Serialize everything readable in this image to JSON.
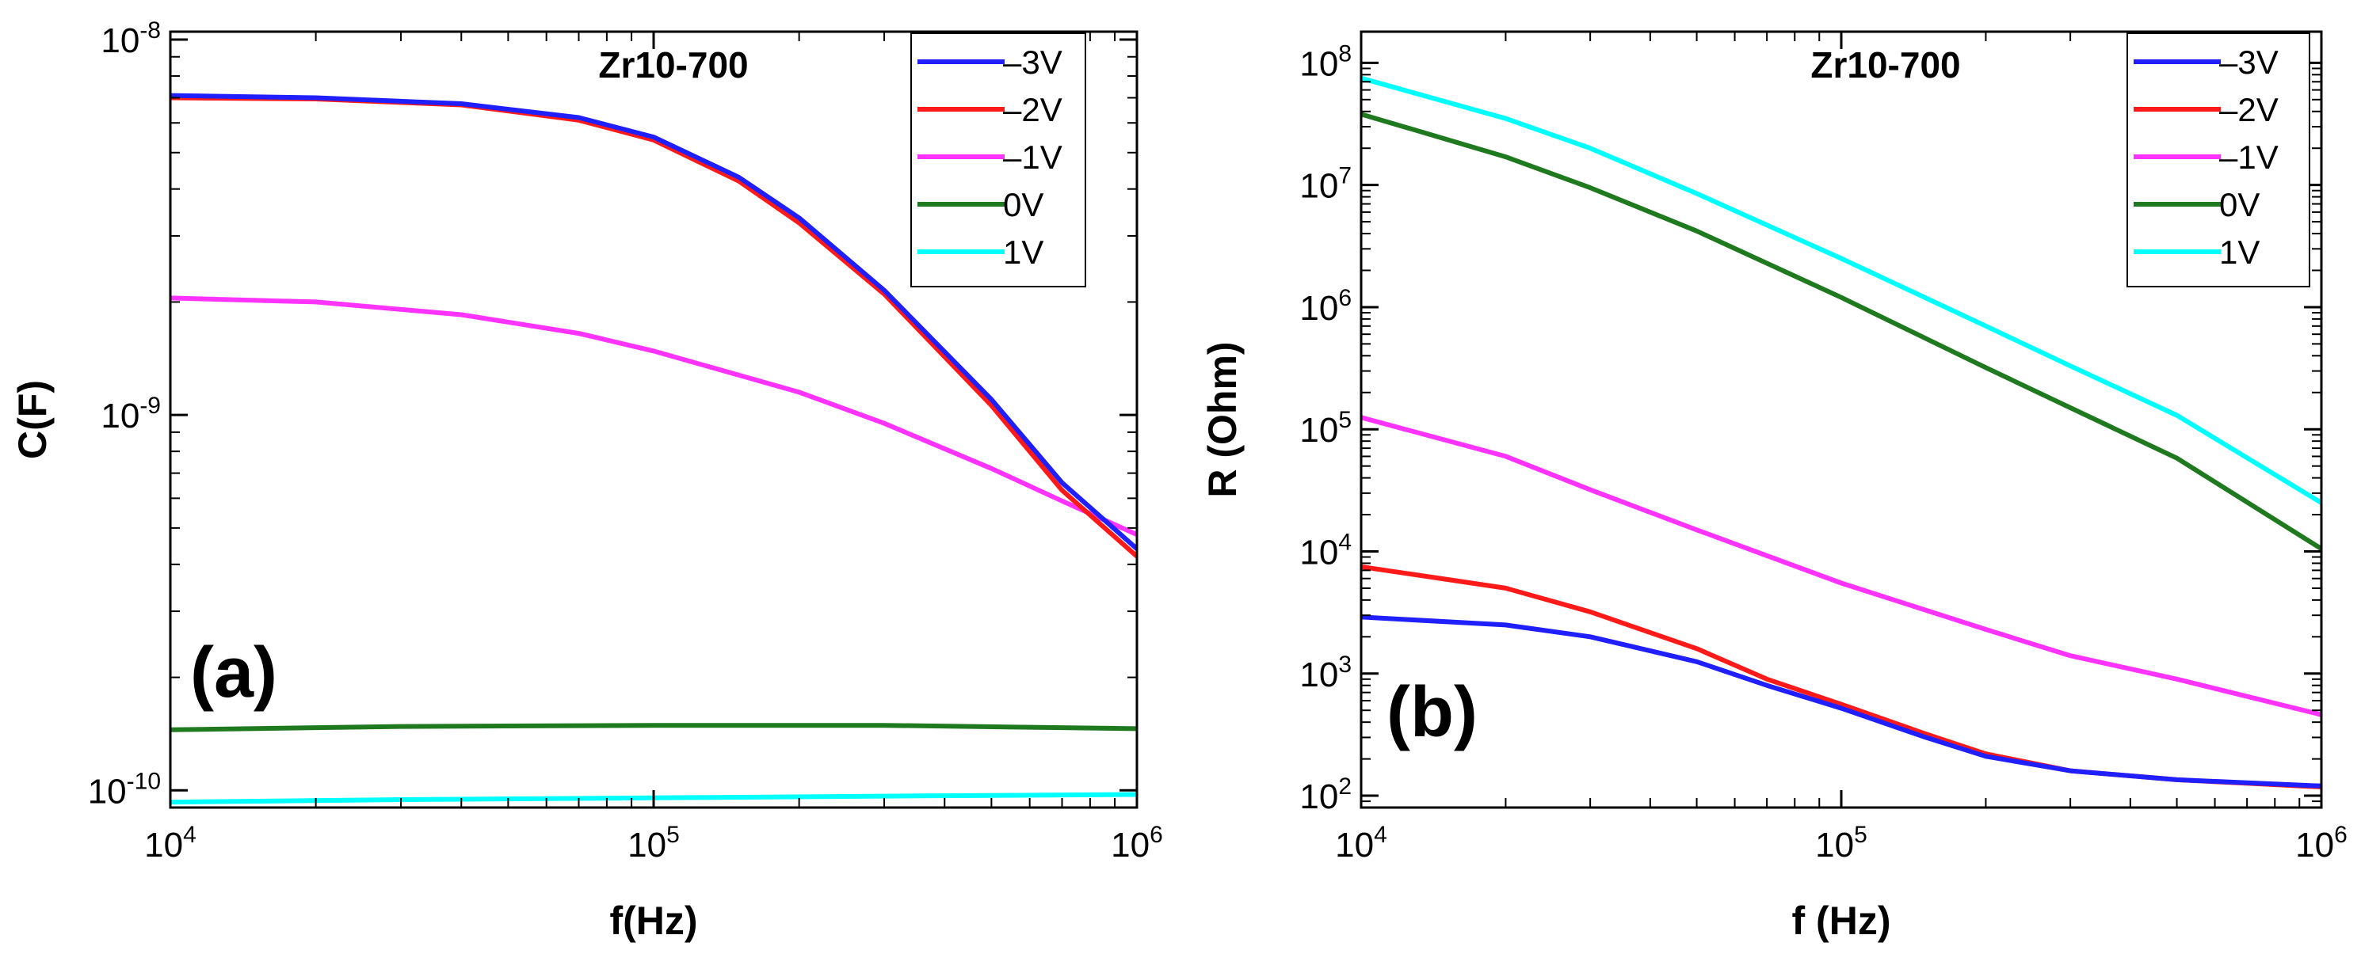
{
  "chart_data": [
    {
      "type": "line",
      "panel_label": "(a)",
      "title": "Zr10-700",
      "xlabel": "f(Hz)",
      "ylabel": "C(F)",
      "xscale": "log",
      "yscale": "log",
      "xlim": [
        10000,
        1000000
      ],
      "ylim": [
        9e-11,
        1.05e-08
      ],
      "xticks": [
        {
          "value": 10000,
          "base": "10",
          "exp": "4"
        },
        {
          "value": 100000,
          "base": "10",
          "exp": "5"
        },
        {
          "value": 1000000,
          "base": "10",
          "exp": "6"
        }
      ],
      "yticks": [
        {
          "value": 1e-10,
          "base": "10",
          "exp": "-10"
        },
        {
          "value": 1e-09,
          "base": "10",
          "exp": "-9"
        },
        {
          "value": 1e-08,
          "base": "10",
          "exp": "-8"
        }
      ],
      "legend_position": "top-right",
      "series": [
        {
          "name": "–3V",
          "color": "#1f1fff",
          "x": [
            10000,
            20000,
            40000,
            70000,
            100000,
            150000,
            200000,
            300000,
            500000,
            700000,
            1000000
          ],
          "values": [
            7.1e-09,
            7e-09,
            6.75e-09,
            6.2e-09,
            5.5e-09,
            4.3e-09,
            3.35e-09,
            2.15e-09,
            1.1e-09,
            6.6e-10,
            4.4e-10
          ]
        },
        {
          "name": "–2V",
          "color": "#ff1a1a",
          "x": [
            10000,
            20000,
            40000,
            70000,
            100000,
            150000,
            200000,
            300000,
            500000,
            700000,
            1000000
          ],
          "values": [
            7e-09,
            6.95e-09,
            6.7e-09,
            6.1e-09,
            5.4e-09,
            4.2e-09,
            3.25e-09,
            2.1e-09,
            1.06e-09,
            6.3e-10,
            4.2e-10
          ]
        },
        {
          "name": "–1V",
          "color": "#ff33ff",
          "x": [
            10000,
            20000,
            40000,
            70000,
            100000,
            200000,
            300000,
            500000,
            700000,
            1000000
          ],
          "values": [
            2.05e-09,
            2e-09,
            1.85e-09,
            1.65e-09,
            1.48e-09,
            1.15e-09,
            9.5e-10,
            7.2e-10,
            5.9e-10,
            4.8e-10
          ]
        },
        {
          "name": "0V",
          "color": "#1f7a1f",
          "x": [
            10000,
            30000,
            100000,
            300000,
            1000000
          ],
          "values": [
            1.45e-10,
            1.48e-10,
            1.49e-10,
            1.49e-10,
            1.46e-10
          ]
        },
        {
          "name": "1V",
          "color": "#00ffff",
          "x": [
            10000,
            30000,
            100000,
            300000,
            1000000
          ],
          "values": [
            9.3e-11,
            9.45e-11,
            9.55e-11,
            9.65e-11,
            9.75e-11
          ]
        }
      ]
    },
    {
      "type": "line",
      "panel_label": "(b)",
      "title": "Zr10-700",
      "xlabel": "f (Hz)",
      "ylabel": "R (Ohm)",
      "xscale": "log",
      "yscale": "log",
      "xlim": [
        10000,
        1000000
      ],
      "ylim": [
        80,
        180000000
      ],
      "xticks": [
        {
          "value": 10000,
          "base": "10",
          "exp": "4"
        },
        {
          "value": 100000,
          "base": "10",
          "exp": "5"
        },
        {
          "value": 1000000,
          "base": "10",
          "exp": "6"
        }
      ],
      "yticks": [
        {
          "value": 100,
          "base": "10",
          "exp": "2"
        },
        {
          "value": 1000,
          "base": "10",
          "exp": "3"
        },
        {
          "value": 10000,
          "base": "10",
          "exp": "4"
        },
        {
          "value": 100000,
          "base": "10",
          "exp": "5"
        },
        {
          "value": 1000000,
          "base": "10",
          "exp": "6"
        },
        {
          "value": 10000000,
          "base": "10",
          "exp": "7"
        },
        {
          "value": 100000000,
          "base": "10",
          "exp": "8"
        }
      ],
      "legend_position": "top-right",
      "series": [
        {
          "name": "–3V",
          "color": "#1f1fff",
          "x": [
            10000,
            20000,
            30000,
            50000,
            70000,
            100000,
            150000,
            200000,
            300000,
            500000,
            1000000
          ],
          "values": [
            2900,
            2500,
            2000,
            1250,
            800,
            520,
            300,
            210,
            160,
            135,
            120
          ]
        },
        {
          "name": "–2V",
          "color": "#ff1a1a",
          "x": [
            10000,
            20000,
            30000,
            50000,
            70000,
            100000,
            150000,
            200000,
            300000,
            500000,
            1000000
          ],
          "values": [
            7500,
            5000,
            3200,
            1600,
            900,
            560,
            320,
            220,
            160,
            135,
            118
          ]
        },
        {
          "name": "–1V",
          "color": "#ff33ff",
          "x": [
            10000,
            20000,
            30000,
            50000,
            100000,
            200000,
            300000,
            500000,
            1000000
          ],
          "values": [
            125000,
            60000,
            32000,
            15000,
            5500,
            2300,
            1400,
            900,
            460
          ]
        },
        {
          "name": "0V",
          "color": "#1f7a1f",
          "x": [
            10000,
            20000,
            30000,
            50000,
            100000,
            200000,
            300000,
            500000,
            1000000
          ],
          "values": [
            38000000,
            17000000,
            9500000,
            4200000,
            1200000,
            320000,
            150000,
            58000,
            10500
          ]
        },
        {
          "name": "1V",
          "color": "#00ffff",
          "x": [
            10000,
            20000,
            30000,
            50000,
            100000,
            200000,
            300000,
            500000,
            1000000
          ],
          "values": [
            75000000,
            35000000,
            20000000,
            8500000,
            2500000,
            700000,
            330000,
            130000,
            25000
          ]
        }
      ]
    }
  ]
}
